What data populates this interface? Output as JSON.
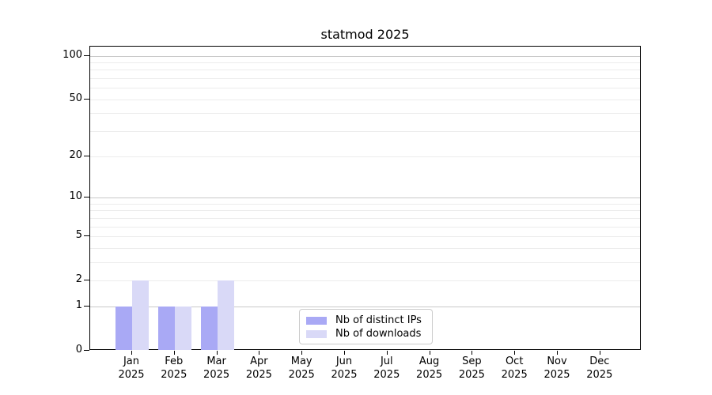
{
  "chart_data": {
    "type": "bar",
    "title": "statmod 2025",
    "categories": [
      "Jan",
      "Feb",
      "Mar",
      "Apr",
      "May",
      "Jun",
      "Jul",
      "Aug",
      "Sep",
      "Oct",
      "Nov",
      "Dec"
    ],
    "category_year": "2025",
    "series": [
      {
        "name": "Nb of distinct IPs",
        "color": "#a9a9f5",
        "values": [
          1,
          1,
          1,
          0,
          0,
          0,
          0,
          0,
          0,
          0,
          0,
          0
        ]
      },
      {
        "name": "Nb of downloads",
        "color": "#d9d9f7",
        "values": [
          2,
          1,
          2,
          0,
          0,
          0,
          0,
          0,
          0,
          0,
          0,
          0
        ]
      }
    ],
    "xlabel": "",
    "ylabel": "",
    "y_ticks": [
      0,
      1,
      2,
      5,
      10,
      20,
      50,
      100
    ],
    "y_scale": "log10(1+x)",
    "ylim": [
      0,
      113
    ],
    "y_major_gridlines": [
      1,
      10,
      100
    ],
    "y_minor_gridlines": [
      2,
      3,
      4,
      5,
      6,
      7,
      8,
      9,
      20,
      30,
      40,
      50,
      60,
      70,
      80,
      90
    ],
    "grid": true,
    "legend": {
      "location": "lower center",
      "entries": [
        "Nb of distinct IPs",
        "Nb of downloads"
      ]
    }
  },
  "colors": {
    "background": "#ffffff",
    "bar_distinct_ips": "#a9a9f5",
    "bar_downloads": "#d9d9f7",
    "grid_major": "#c9c9c9",
    "grid_minor": "#ececec",
    "axis": "#000000",
    "text": "#000000",
    "legend_border": "#cccccc"
  }
}
